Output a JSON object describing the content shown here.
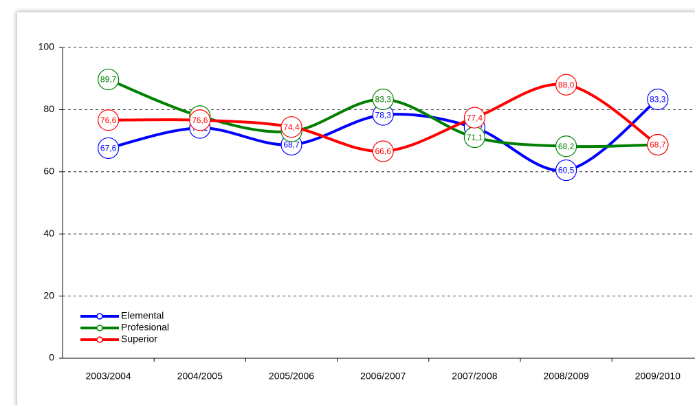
{
  "chart_data": {
    "type": "line",
    "categories": [
      "2003/2004",
      "2004/2005",
      "2005/2006",
      "2006/2007",
      "2007/2008",
      "2008/2009",
      "2009/2010"
    ],
    "series": [
      {
        "name": "Elemental",
        "color": "#0000ff",
        "values": [
          67.6,
          74.1,
          68.7,
          78.3,
          74.2,
          60.5,
          83.3
        ],
        "value_labels": [
          "67,6",
          "74,1",
          "68,7",
          "78,3",
          "74,2",
          "60,5",
          "83,3"
        ]
      },
      {
        "name": "Profesional",
        "color": "#008000",
        "values": [
          89.7,
          77.9,
          73.0,
          83.3,
          71.1,
          68.2,
          68.7
        ],
        "value_labels": [
          "89,7",
          "77,9",
          "73,0",
          "83,3",
          "71,1",
          "68,2",
          "68,7"
        ]
      },
      {
        "name": "Superior",
        "color": "#ff0000",
        "values": [
          76.6,
          76.6,
          74.4,
          66.6,
          77.4,
          88.0,
          68.7
        ],
        "value_labels": [
          "76,6",
          "76,6",
          "74,4",
          "66,6",
          "77,4",
          "88,0",
          "68,7"
        ]
      }
    ],
    "ylim": [
      0,
      100
    ],
    "yticks": [
      0,
      20,
      40,
      60,
      80,
      100
    ],
    "grid": true,
    "legend": "bottom-left"
  }
}
